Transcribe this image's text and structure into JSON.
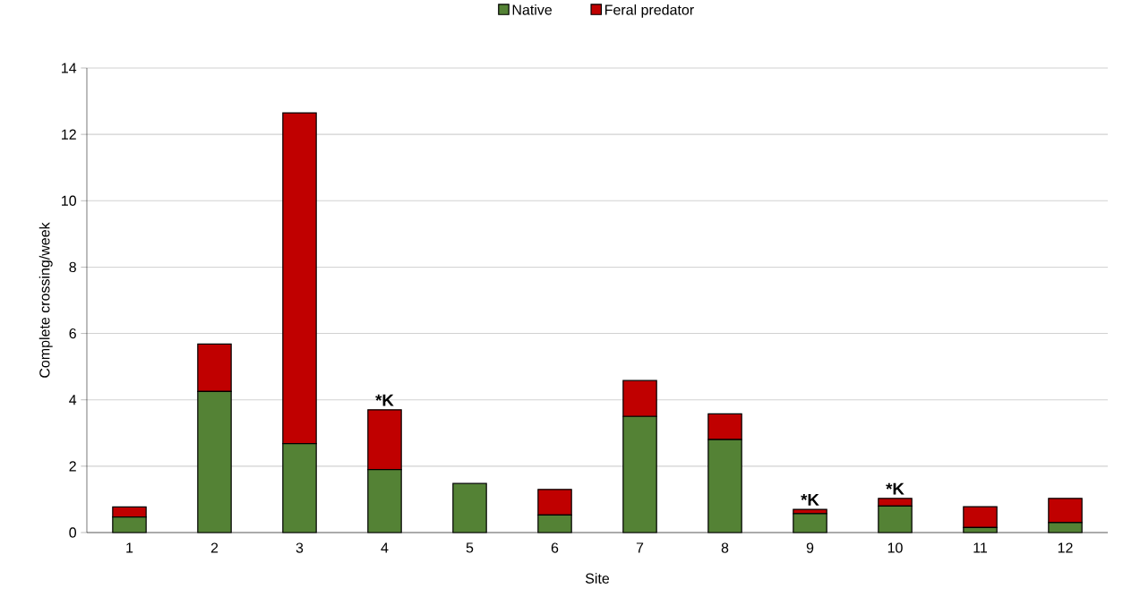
{
  "chart_data": {
    "type": "bar",
    "stacked": true,
    "xlabel": "Site",
    "ylabel": "Complete crossing/week",
    "categories": [
      "1",
      "2",
      "3",
      "4",
      "5",
      "6",
      "7",
      "8",
      "9",
      "10",
      "11",
      "12"
    ],
    "series": [
      {
        "name": "Native",
        "color": "#548235",
        "values": [
          0.47,
          4.25,
          2.68,
          1.9,
          1.48,
          0.53,
          3.5,
          2.8,
          0.57,
          0.8,
          0.15,
          0.3
        ]
      },
      {
        "name": "Feral predator",
        "color": "#c00000",
        "values": [
          0.3,
          1.43,
          9.97,
          1.8,
          0,
          0.77,
          1.08,
          0.78,
          0.13,
          0.23,
          0.63,
          0.73
        ]
      }
    ],
    "ylim": [
      0,
      14
    ],
    "yticks": [
      0,
      2,
      4,
      6,
      8,
      10,
      12,
      14
    ],
    "grid": "y",
    "legend": "top",
    "annotations": [
      {
        "text": "*K",
        "x": "4",
        "y": 3.7
      },
      {
        "text": "*K",
        "x": "9",
        "y": 0.7
      },
      {
        "text": "*K",
        "x": "10",
        "y": 1.03
      }
    ]
  }
}
